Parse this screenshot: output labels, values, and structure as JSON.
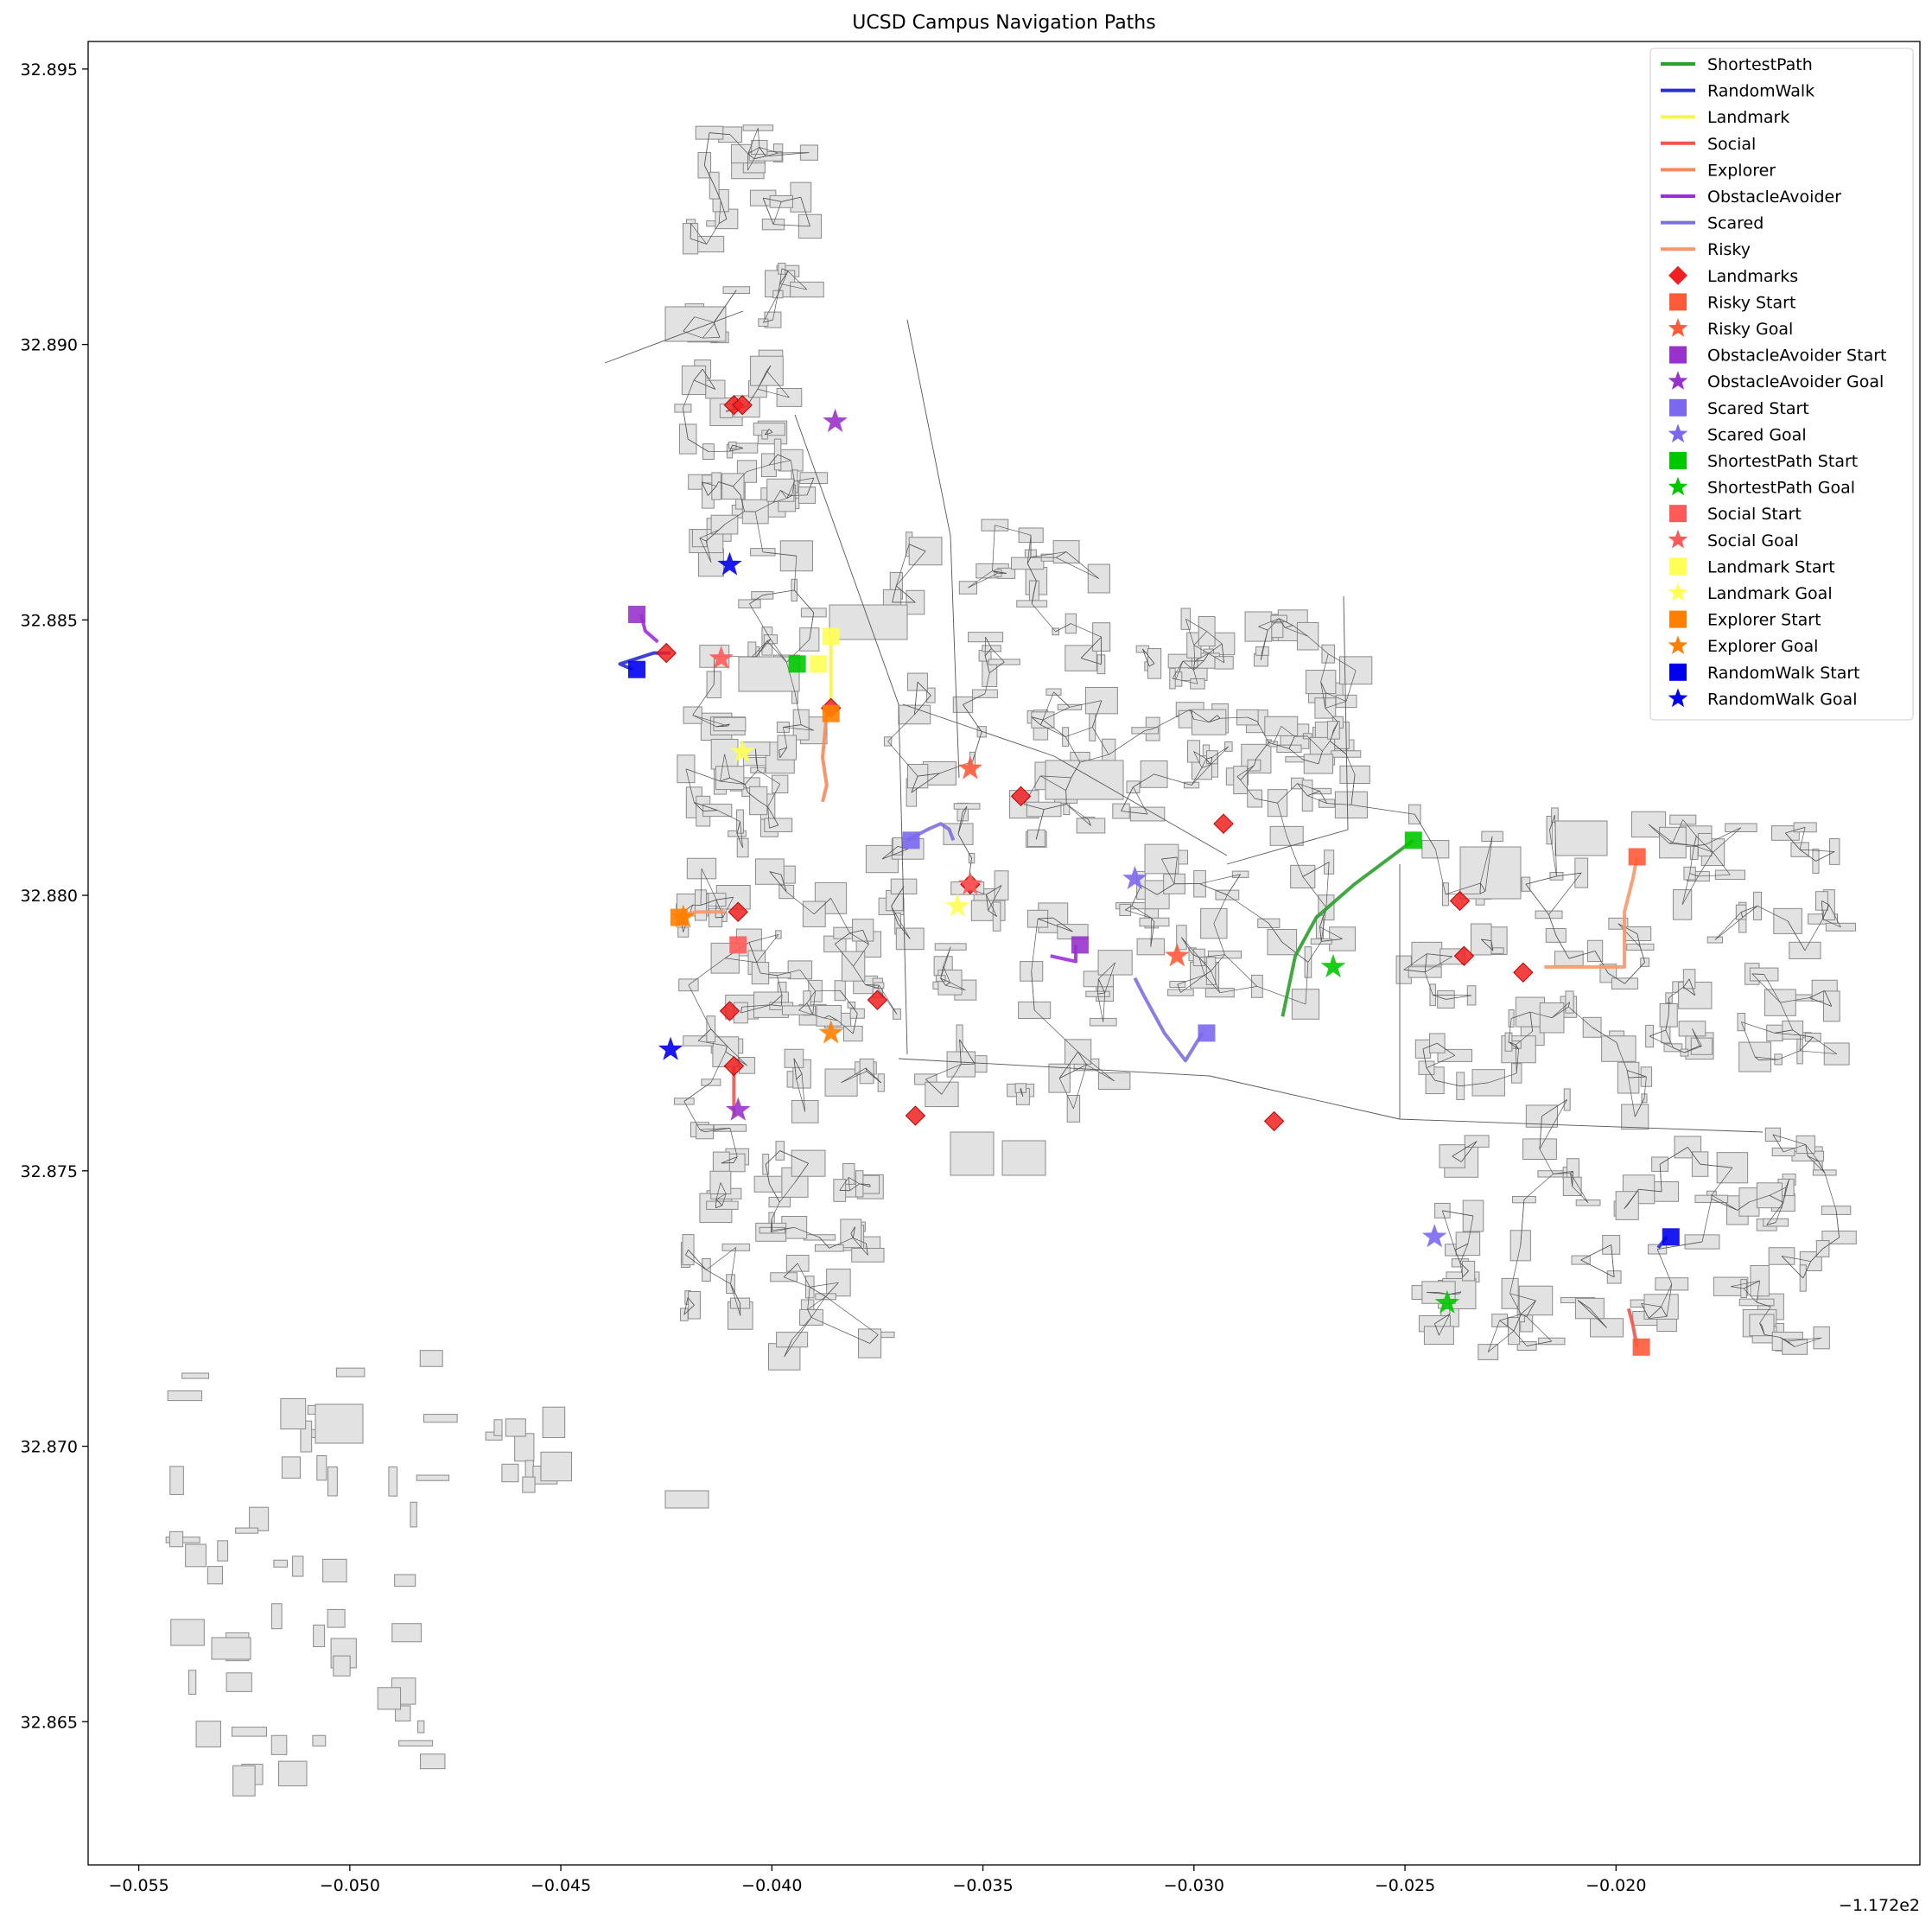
{
  "chart_data": {
    "type": "map",
    "title": "UCSD Campus Navigation Paths",
    "x_offset_label": "−1.172e2",
    "xlim": [
      -0.0562,
      -0.0128
    ],
    "ylim": [
      32.8624,
      32.8955
    ],
    "x_ticks": [
      -0.055,
      -0.05,
      -0.045,
      -0.04,
      -0.035,
      -0.03,
      -0.025,
      -0.02
    ],
    "x_tick_labels": [
      "−0.055",
      "−0.050",
      "−0.045",
      "−0.040",
      "−0.035",
      "−0.030",
      "−0.025",
      "−0.020"
    ],
    "y_ticks": [
      32.865,
      32.87,
      32.875,
      32.88,
      32.885,
      32.89,
      32.895
    ],
    "y_tick_labels": [
      "32.865",
      "32.870",
      "32.875",
      "32.880",
      "32.885",
      "32.890",
      "32.895"
    ],
    "colors": {
      "ShortestPath": "#2ca02c",
      "RandomWalk": "#2a2fd0",
      "Landmark": "#f5f54a",
      "Social": "#f0544f",
      "Explorer": "#f78a5a",
      "ObstacleAvoider": "#9b2fd6",
      "Scared": "#7b70e0",
      "Risky": "#f7976b",
      "Landmarks": "#f02020",
      "RiskyStart": "#ff5a3a",
      "ObstacleAvoiderStart": "#9932cc",
      "ScaredStart": "#7b68ee",
      "ShortestPathStart": "#00c800",
      "SocialStart": "#ff5a5a",
      "LandmarkStart": "#ffff55",
      "ExplorerStart": "#ff8000",
      "RandomWalkStart": "#0000ee"
    },
    "legend": [
      {
        "label": "ShortestPath",
        "kind": "line",
        "color": "#2ca02c"
      },
      {
        "label": "RandomWalk",
        "kind": "line",
        "color": "#2a2fd0"
      },
      {
        "label": "Landmark",
        "kind": "line",
        "color": "#f5f54a"
      },
      {
        "label": "Social",
        "kind": "line",
        "color": "#f0544f"
      },
      {
        "label": "Explorer",
        "kind": "line",
        "color": "#f78a5a"
      },
      {
        "label": "ObstacleAvoider",
        "kind": "line",
        "color": "#9b2fd6"
      },
      {
        "label": "Scared",
        "kind": "line",
        "color": "#7b70e0"
      },
      {
        "label": "Risky",
        "kind": "line",
        "color": "#f7976b"
      },
      {
        "label": "Landmarks",
        "kind": "diamond",
        "color": "#f02020"
      },
      {
        "label": "Risky Start",
        "kind": "square",
        "color": "#ff5a3a"
      },
      {
        "label": "Risky Goal",
        "kind": "star",
        "color": "#ff5a3a"
      },
      {
        "label": "ObstacleAvoider Start",
        "kind": "square",
        "color": "#9932cc"
      },
      {
        "label": "ObstacleAvoider Goal",
        "kind": "star",
        "color": "#9932cc"
      },
      {
        "label": "Scared Start",
        "kind": "square",
        "color": "#7b68ee"
      },
      {
        "label": "Scared Goal",
        "kind": "star",
        "color": "#7b68ee"
      },
      {
        "label": "ShortestPath Start",
        "kind": "square",
        "color": "#00c800"
      },
      {
        "label": "ShortestPath Goal",
        "kind": "star",
        "color": "#00c800"
      },
      {
        "label": "Social Start",
        "kind": "square",
        "color": "#ff5a5a"
      },
      {
        "label": "Social Goal",
        "kind": "star",
        "color": "#ff5a5a"
      },
      {
        "label": "Landmark Start",
        "kind": "square",
        "color": "#ffff55"
      },
      {
        "label": "Landmark Goal",
        "kind": "star",
        "color": "#ffff55"
      },
      {
        "label": "Explorer Start",
        "kind": "square",
        "color": "#ff8000"
      },
      {
        "label": "Explorer Goal",
        "kind": "star",
        "color": "#ff8000"
      },
      {
        "label": "RandomWalk Start",
        "kind": "square",
        "color": "#0000ee"
      },
      {
        "label": "RandomWalk Goal",
        "kind": "star",
        "color": "#0000ee"
      }
    ],
    "landmarks": [
      [
        -0.0409,
        32.8889
      ],
      [
        -0.0407,
        32.8889
      ],
      [
        -0.0425,
        32.8844
      ],
      [
        -0.0386,
        32.8834
      ],
      [
        -0.0341,
        32.8818
      ],
      [
        -0.0293,
        32.8813
      ],
      [
        -0.0353,
        32.8802
      ],
      [
        -0.0408,
        32.8797
      ],
      [
        -0.0375,
        32.8781
      ],
      [
        -0.041,
        32.8779
      ],
      [
        -0.0409,
        32.8769
      ],
      [
        -0.0366,
        32.876
      ],
      [
        -0.0281,
        32.8759
      ],
      [
        -0.0237,
        32.8799
      ],
      [
        -0.0236,
        32.8789
      ],
      [
        -0.0222,
        32.8786
      ]
    ],
    "paths": [
      {
        "agent": "ShortestPath",
        "points": [
          [
            -0.0248,
            32.881
          ],
          [
            -0.0262,
            32.8802
          ],
          [
            -0.0271,
            32.8796
          ],
          [
            -0.0276,
            32.8789
          ],
          [
            -0.0279,
            32.8778
          ]
        ]
      },
      {
        "agent": "RandomWalk",
        "points": [
          [
            -0.0433,
            32.8841
          ],
          [
            -0.0436,
            32.8842
          ],
          [
            -0.0428,
            32.8844
          ],
          [
            -0.0424,
            32.8844
          ]
        ]
      },
      {
        "agent": "RandomWalk",
        "points": [
          [
            -0.0188,
            32.8738
          ],
          [
            -0.019,
            32.8736
          ]
        ]
      },
      {
        "agent": "Landmark",
        "points": [
          [
            -0.0386,
            32.8847
          ],
          [
            -0.0386,
            32.8835
          ]
        ]
      },
      {
        "agent": "Social",
        "points": [
          [
            -0.0409,
            32.8769
          ],
          [
            -0.0409,
            32.876
          ]
        ]
      },
      {
        "agent": "Social",
        "points": [
          [
            -0.0195,
            32.8718
          ],
          [
            -0.0196,
            32.8722
          ],
          [
            -0.0197,
            32.8725
          ]
        ]
      },
      {
        "agent": "Explorer",
        "points": [
          [
            -0.0387,
            32.8833
          ],
          [
            -0.0388,
            32.8825
          ],
          [
            -0.0387,
            32.882
          ],
          [
            -0.0388,
            32.8817
          ]
        ]
      },
      {
        "agent": "ObstacleAvoider",
        "points": [
          [
            -0.0431,
            32.8851
          ],
          [
            -0.043,
            32.8848
          ],
          [
            -0.0427,
            32.8846
          ]
        ]
      },
      {
        "agent": "ObstacleAvoider",
        "points": [
          [
            -0.0328,
            32.8791
          ],
          [
            -0.0328,
            32.8788
          ],
          [
            -0.0334,
            32.8789
          ]
        ]
      },
      {
        "agent": "Scared",
        "points": [
          [
            -0.0368,
            32.881
          ],
          [
            -0.0363,
            32.8812
          ],
          [
            -0.036,
            32.8813
          ],
          [
            -0.0358,
            32.8812
          ],
          [
            -0.0357,
            32.881
          ]
        ]
      },
      {
        "agent": "Scared",
        "points": [
          [
            -0.0298,
            32.8775
          ],
          [
            -0.0302,
            32.877
          ],
          [
            -0.0307,
            32.8775
          ],
          [
            -0.0312,
            32.8782
          ],
          [
            -0.0314,
            32.8785
          ]
        ]
      },
      {
        "agent": "Risky",
        "points": [
          [
            -0.0195,
            32.8807
          ],
          [
            -0.0196,
            32.8803
          ],
          [
            -0.0198,
            32.8797
          ],
          [
            -0.0198,
            32.8787
          ],
          [
            -0.021,
            32.8787
          ],
          [
            -0.0217,
            32.8787
          ]
        ]
      },
      {
        "agent": "Risky",
        "points": [
          [
            -0.0423,
            32.8796
          ],
          [
            -0.0418,
            32.8797
          ],
          [
            -0.0411,
            32.8797
          ]
        ]
      }
    ],
    "starts": [
      {
        "agent": "Risky",
        "points": [
          [
            -0.0195,
            32.8807
          ],
          [
            -0.0194,
            32.8718
          ]
        ]
      },
      {
        "agent": "ObstacleAvoider",
        "points": [
          [
            -0.0432,
            32.8851
          ],
          [
            -0.0327,
            32.8791
          ]
        ]
      },
      {
        "agent": "Scared",
        "points": [
          [
            -0.0367,
            32.881
          ],
          [
            -0.0297,
            32.8775
          ]
        ]
      },
      {
        "agent": "ShortestPath",
        "points": [
          [
            -0.0248,
            32.881
          ],
          [
            -0.0394,
            32.8842
          ]
        ]
      },
      {
        "agent": "Social",
        "points": [
          [
            -0.0408,
            32.8791
          ]
        ]
      },
      {
        "agent": "Landmark",
        "points": [
          [
            -0.0386,
            32.8847
          ],
          [
            -0.0389,
            32.8842
          ]
        ]
      },
      {
        "agent": "Explorer",
        "points": [
          [
            -0.0386,
            32.8833
          ],
          [
            -0.0422,
            32.8796
          ]
        ]
      },
      {
        "agent": "RandomWalk",
        "points": [
          [
            -0.0432,
            32.8841
          ],
          [
            -0.0187,
            32.8738
          ]
        ]
      }
    ],
    "goals": [
      {
        "agent": "Risky",
        "points": [
          [
            -0.0353,
            32.8823
          ],
          [
            -0.0304,
            32.8789
          ]
        ]
      },
      {
        "agent": "ObstacleAvoider",
        "points": [
          [
            -0.0385,
            32.8886
          ],
          [
            -0.0408,
            32.8761
          ]
        ]
      },
      {
        "agent": "Scared",
        "points": [
          [
            -0.0314,
            32.8803
          ],
          [
            -0.0243,
            32.8738
          ]
        ]
      },
      {
        "agent": "ShortestPath",
        "points": [
          [
            -0.0267,
            32.8787
          ],
          [
            -0.024,
            32.8726
          ]
        ]
      },
      {
        "agent": "Social",
        "points": [
          [
            -0.0412,
            32.8843
          ],
          [
            -0.0353,
            32.8802
          ]
        ]
      },
      {
        "agent": "Landmark",
        "points": [
          [
            -0.0407,
            32.8826
          ],
          [
            -0.0356,
            32.8798
          ]
        ]
      },
      {
        "agent": "Explorer",
        "points": [
          [
            -0.0386,
            32.8775
          ],
          [
            -0.0421,
            32.8796
          ]
        ]
      },
      {
        "agent": "RandomWalk",
        "points": [
          [
            -0.041,
            32.886
          ],
          [
            -0.0424,
            32.8772
          ]
        ]
      }
    ]
  }
}
